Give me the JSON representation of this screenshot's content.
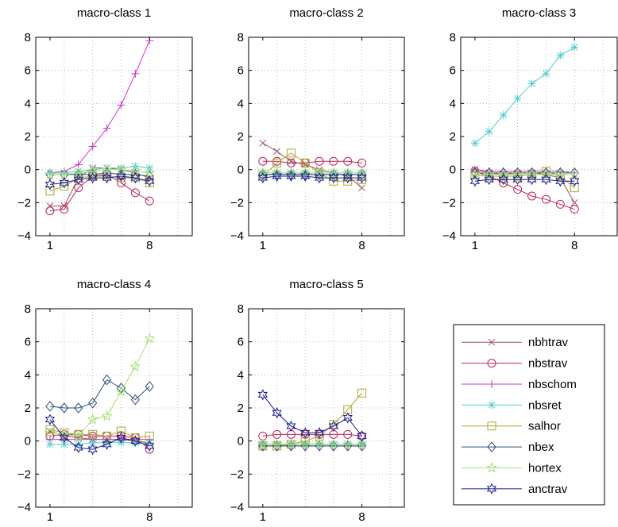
{
  "series_styles": [
    {
      "name": "nbhtrav",
      "color": "#a0525f",
      "marker": "x"
    },
    {
      "name": "nbstrav",
      "color": "#c0245a",
      "marker": "circle"
    },
    {
      "name": "nbschom",
      "color": "#cc33cc",
      "marker": "plus"
    },
    {
      "name": "nbsret",
      "color": "#55cccc",
      "marker": "star"
    },
    {
      "name": "salhor",
      "color": "#a8a830",
      "marker": "square"
    },
    {
      "name": "nbex",
      "color": "#2a4f7a",
      "marker": "diamond"
    },
    {
      "name": "hortex",
      "color": "#a6e07a",
      "marker": "pentagram"
    },
    {
      "name": "anctrav",
      "color": "#1a1a8c",
      "marker": "hexagram"
    }
  ],
  "chart_data": [
    {
      "type": "line",
      "title": "macro-class 1",
      "x": [
        1,
        2,
        3,
        4,
        5,
        6,
        7,
        8
      ],
      "xticks": [
        1,
        8
      ],
      "yticks": [
        -4,
        -2,
        0,
        2,
        4,
        6,
        8
      ],
      "xlim": [
        0,
        11
      ],
      "ylim": [
        -4,
        8
      ],
      "grid": true,
      "series": [
        {
          "name": "nbhtrav",
          "values": [
            -2.2,
            -2.2,
            -0.5,
            0.1,
            0.1,
            0.0,
            -0.2,
            -0.5
          ]
        },
        {
          "name": "nbstrav",
          "values": [
            -2.5,
            -2.4,
            -1.1,
            -0.4,
            -0.3,
            -0.8,
            -1.4,
            -1.9
          ]
        },
        {
          "name": "nbschom",
          "values": [
            -0.2,
            -0.1,
            0.3,
            1.4,
            2.5,
            3.9,
            5.8,
            7.8
          ]
        },
        {
          "name": "nbsret",
          "values": [
            -0.2,
            -0.2,
            -0.1,
            0.0,
            0.1,
            0.1,
            0.2,
            0.1
          ]
        },
        {
          "name": "salhor",
          "values": [
            -1.3,
            -1.0,
            -0.5,
            -0.4,
            -0.4,
            -0.5,
            -0.5,
            -0.8
          ]
        },
        {
          "name": "nbex",
          "values": [
            -0.3,
            -0.3,
            -0.3,
            -0.3,
            -0.2,
            -0.3,
            -0.3,
            -0.4
          ]
        },
        {
          "name": "hortex",
          "values": [
            -0.3,
            -0.3,
            -0.2,
            -0.1,
            0.0,
            0.0,
            -0.1,
            -0.2
          ]
        },
        {
          "name": "anctrav",
          "values": [
            -0.9,
            -0.8,
            -0.6,
            -0.5,
            -0.5,
            -0.4,
            -0.5,
            -0.7
          ]
        }
      ]
    },
    {
      "type": "line",
      "title": "macro-class 2",
      "x": [
        1,
        2,
        3,
        4,
        5,
        6,
        7,
        8
      ],
      "xticks": [
        1,
        8
      ],
      "yticks": [
        -4,
        -2,
        0,
        2,
        4,
        6,
        8
      ],
      "xlim": [
        0,
        11
      ],
      "ylim": [
        -4,
        8
      ],
      "grid": true,
      "series": [
        {
          "name": "nbhtrav",
          "values": [
            1.6,
            1.1,
            0.5,
            0.3,
            0.0,
            -0.2,
            -0.4,
            -1.1
          ]
        },
        {
          "name": "nbstrav",
          "values": [
            0.5,
            0.5,
            0.4,
            0.4,
            0.5,
            0.5,
            0.5,
            0.4
          ]
        },
        {
          "name": "nbschom",
          "values": [
            -0.3,
            -0.3,
            -0.3,
            -0.3,
            -0.3,
            -0.3,
            -0.3,
            -0.3
          ]
        },
        {
          "name": "nbsret",
          "values": [
            -0.2,
            -0.2,
            -0.2,
            -0.2,
            -0.2,
            -0.2,
            -0.2,
            -0.2
          ]
        },
        {
          "name": "salhor",
          "values": [
            -0.4,
            0.4,
            1.0,
            0.4,
            -0.2,
            -0.7,
            -0.7,
            -0.6
          ]
        },
        {
          "name": "nbex",
          "values": [
            -0.3,
            -0.3,
            -0.3,
            -0.3,
            -0.3,
            -0.3,
            -0.3,
            -0.3
          ]
        },
        {
          "name": "hortex",
          "values": [
            -0.2,
            -0.2,
            -0.2,
            -0.2,
            -0.2,
            -0.2,
            -0.2,
            -0.2
          ]
        },
        {
          "name": "anctrav",
          "values": [
            -0.5,
            -0.4,
            -0.4,
            -0.4,
            -0.5,
            -0.5,
            -0.5,
            -0.5
          ]
        }
      ]
    },
    {
      "type": "line",
      "title": "macro-class 3",
      "x": [
        1,
        2,
        3,
        4,
        5,
        6,
        7,
        8
      ],
      "xticks": [
        1,
        8
      ],
      "yticks": [
        -4,
        -2,
        0,
        2,
        4,
        6,
        8
      ],
      "xlim": [
        0,
        11
      ],
      "ylim": [
        -4,
        8
      ],
      "grid": true,
      "series": [
        {
          "name": "nbhtrav",
          "values": [
            0.0,
            -0.2,
            -0.3,
            -0.2,
            -0.2,
            -0.3,
            -0.5,
            -2.0
          ]
        },
        {
          "name": "nbstrav",
          "values": [
            -0.1,
            -0.4,
            -0.8,
            -1.2,
            -1.6,
            -1.8,
            -2.1,
            -2.4
          ]
        },
        {
          "name": "nbschom",
          "values": [
            0.0,
            -0.1,
            -0.1,
            -0.1,
            -0.1,
            -0.1,
            -0.1,
            -0.2
          ]
        },
        {
          "name": "nbsret",
          "values": [
            1.6,
            2.3,
            3.3,
            4.3,
            5.2,
            5.8,
            6.9,
            7.4
          ]
        },
        {
          "name": "salhor",
          "values": [
            -0.3,
            -0.4,
            -0.4,
            -0.4,
            -0.3,
            -0.1,
            -0.4,
            -1.1
          ]
        },
        {
          "name": "nbex",
          "values": [
            -0.2,
            -0.2,
            -0.2,
            -0.2,
            -0.2,
            -0.2,
            -0.2,
            -0.2
          ]
        },
        {
          "name": "hortex",
          "values": [
            -0.3,
            -0.3,
            -0.3,
            -0.3,
            -0.3,
            -0.3,
            -0.3,
            -0.3
          ]
        },
        {
          "name": "anctrav",
          "values": [
            -0.7,
            -0.6,
            -0.6,
            -0.6,
            -0.6,
            -0.6,
            -0.7,
            -0.7
          ]
        }
      ]
    },
    {
      "type": "line",
      "title": "macro-class 4",
      "x": [
        1,
        2,
        3,
        4,
        5,
        6,
        7,
        8
      ],
      "xticks": [
        1,
        8
      ],
      "yticks": [
        -4,
        -2,
        0,
        2,
        4,
        6,
        8
      ],
      "xlim": [
        0,
        11
      ],
      "ylim": [
        -4,
        8
      ],
      "grid": true,
      "series": [
        {
          "name": "nbhtrav",
          "values": [
            0.6,
            0.3,
            0.2,
            0.1,
            0.1,
            0.1,
            0.0,
            -0.1
          ]
        },
        {
          "name": "nbstrav",
          "values": [
            0.3,
            0.4,
            0.4,
            0.3,
            0.3,
            0.3,
            0.2,
            -0.5
          ]
        },
        {
          "name": "nbschom",
          "values": [
            0.1,
            0.1,
            0.1,
            0.1,
            0.1,
            0.1,
            0.1,
            0.1
          ]
        },
        {
          "name": "nbsret",
          "values": [
            -0.2,
            -0.2,
            -0.2,
            -0.1,
            -0.1,
            -0.1,
            -0.1,
            -0.1
          ]
        },
        {
          "name": "salhor",
          "values": [
            0.7,
            0.5,
            0.4,
            0.4,
            0.3,
            0.6,
            0.2,
            0.3
          ]
        },
        {
          "name": "nbex",
          "values": [
            2.1,
            2.0,
            2.0,
            2.3,
            3.7,
            3.2,
            2.5,
            3.3
          ]
        },
        {
          "name": "hortex",
          "values": [
            0.5,
            0.4,
            0.3,
            1.3,
            1.5,
            3.0,
            4.5,
            6.2
          ]
        },
        {
          "name": "anctrav",
          "values": [
            1.3,
            0.2,
            -0.4,
            -0.5,
            -0.2,
            0.2,
            0.0,
            -0.3
          ]
        }
      ]
    },
    {
      "type": "line",
      "title": "macro-class 5",
      "x": [
        1,
        2,
        3,
        4,
        5,
        6,
        7,
        8
      ],
      "xticks": [
        1,
        8
      ],
      "yticks": [
        -4,
        -2,
        0,
        2,
        4,
        6,
        8
      ],
      "xlim": [
        0,
        11
      ],
      "ylim": [
        -4,
        8
      ],
      "grid": true,
      "series": [
        {
          "name": "nbhtrav",
          "values": [
            -0.2,
            -0.2,
            -0.2,
            -0.2,
            -0.2,
            -0.2,
            -0.2,
            -0.2
          ]
        },
        {
          "name": "nbstrav",
          "values": [
            0.3,
            0.4,
            0.4,
            0.4,
            0.4,
            0.4,
            0.4,
            0.3
          ]
        },
        {
          "name": "nbschom",
          "values": [
            -0.3,
            -0.3,
            -0.3,
            -0.3,
            -0.3,
            -0.3,
            -0.3,
            -0.3
          ]
        },
        {
          "name": "nbsret",
          "values": [
            -0.2,
            -0.2,
            -0.2,
            -0.2,
            -0.2,
            -0.2,
            -0.2,
            -0.2
          ]
        },
        {
          "name": "salhor",
          "values": [
            -0.3,
            -0.3,
            -0.2,
            0.0,
            0.3,
            1.0,
            1.9,
            2.9
          ]
        },
        {
          "name": "nbex",
          "values": [
            -0.3,
            -0.3,
            -0.3,
            -0.3,
            -0.3,
            -0.3,
            -0.3,
            -0.3
          ]
        },
        {
          "name": "hortex",
          "values": [
            -0.2,
            -0.2,
            -0.2,
            -0.2,
            -0.2,
            -0.2,
            -0.2,
            -0.2
          ]
        },
        {
          "name": "anctrav",
          "values": [
            2.8,
            1.7,
            0.9,
            0.5,
            0.5,
            0.9,
            1.4,
            0.3
          ]
        }
      ]
    }
  ],
  "legend": {
    "placement": "bottom-right",
    "entries": [
      "nbhtrav",
      "nbstrav",
      "nbschom",
      "nbsret",
      "salhor",
      "nbex",
      "hortex",
      "anctrav"
    ]
  }
}
